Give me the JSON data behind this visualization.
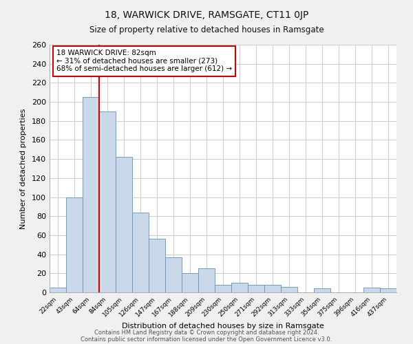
{
  "title": "18, WARWICK DRIVE, RAMSGATE, CT11 0JP",
  "subtitle": "Size of property relative to detached houses in Ramsgate",
  "xlabel": "Distribution of detached houses by size in Ramsgate",
  "ylabel": "Number of detached properties",
  "bar_labels": [
    "22sqm",
    "43sqm",
    "64sqm",
    "84sqm",
    "105sqm",
    "126sqm",
    "147sqm",
    "167sqm",
    "188sqm",
    "209sqm",
    "230sqm",
    "250sqm",
    "271sqm",
    "292sqm",
    "313sqm",
    "333sqm",
    "354sqm",
    "375sqm",
    "396sqm",
    "416sqm",
    "437sqm"
  ],
  "bar_values": [
    5,
    100,
    205,
    190,
    142,
    84,
    56,
    37,
    20,
    25,
    8,
    10,
    8,
    8,
    6,
    0,
    4,
    0,
    0,
    5,
    4
  ],
  "bar_color": "#c9d9e9",
  "bar_edge_color": "#6090b8",
  "ylim": [
    0,
    260
  ],
  "yticks": [
    0,
    20,
    40,
    60,
    80,
    100,
    120,
    140,
    160,
    180,
    200,
    220,
    240,
    260
  ],
  "annotation_box_text": "18 WARWICK DRIVE: 82sqm\n← 31% of detached houses are smaller (273)\n68% of semi-detached houses are larger (612) →",
  "vline_x": 3.0,
  "vline_color": "#cc0000",
  "box_edge_color": "#cc0000",
  "footer1": "Contains HM Land Registry data © Crown copyright and database right 2024.",
  "footer2": "Contains public sector information licensed under the Open Government Licence v3.0.",
  "bg_color": "#f0f0f0",
  "plot_bg_color": "#ffffff",
  "grid_color": "#cccccc"
}
